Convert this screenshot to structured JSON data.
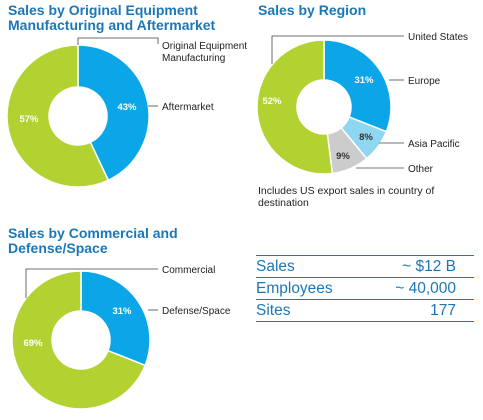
{
  "chart_data": [
    {
      "type": "pie",
      "title": "Sales by Original Equipment Manufacturing and Aftermarket",
      "title_lines": [
        "Sales by Original Equipment",
        "Manufacturing and Aftermarket"
      ],
      "slices": [
        {
          "label": "Aftermarket",
          "value": 43,
          "display": "43%",
          "color": "#0aa6e8"
        },
        {
          "label": "Original Equipment Manufacturing",
          "label_lines": [
            "Original Equipment",
            "Manufacturing"
          ],
          "value": 57,
          "display": "57%",
          "color": "#b1d231"
        }
      ]
    },
    {
      "type": "pie",
      "title": "Sales by Region",
      "title_lines": [
        "Sales by Region"
      ],
      "note": "Includes US export sales in country of destination",
      "slices": [
        {
          "label": "Europe",
          "value": 31,
          "display": "31%",
          "color": "#0aa6e8"
        },
        {
          "label": "Asia Pacific",
          "value": 8,
          "display": "8%",
          "color": "#8fd6f0"
        },
        {
          "label": "Other",
          "value": 9,
          "display": "9%",
          "color": "#cccccc"
        },
        {
          "label": "United States",
          "value": 52,
          "display": "52%",
          "color": "#b1d231"
        }
      ]
    },
    {
      "type": "pie",
      "title": "Sales by Commercial and Defense/Space",
      "title_lines": [
        "Sales by Commercial and",
        "Defense/Space"
      ],
      "slices": [
        {
          "label": "Defense/Space",
          "value": 31,
          "display": "31%",
          "color": "#0aa6e8"
        },
        {
          "label": "Commercial",
          "value": 69,
          "display": "69%",
          "color": "#b1d231"
        }
      ]
    }
  ],
  "stats": [
    {
      "label": "Sales",
      "value": "~ $12 B"
    },
    {
      "label": "Employees",
      "value": "~ 40,000"
    },
    {
      "label": "Sites",
      "value": "177"
    }
  ]
}
